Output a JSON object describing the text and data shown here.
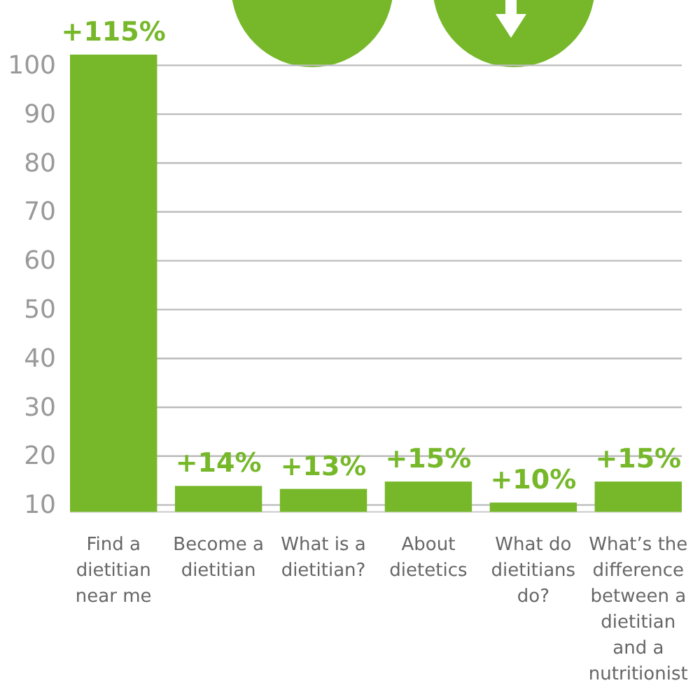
{
  "chart_data": {
    "type": "bar",
    "categories": [
      "Find a dietitian near me",
      "Become a dietitian",
      "What is a dietitian?",
      "About dietetics",
      "What do dietitians do?",
      "What’s the difference between a dietitian and a nutritionist"
    ],
    "values": [
      102.2,
      13.9,
      13.3,
      14.8,
      10.5,
      14.8
    ],
    "annotations": [
      {
        "text": "+115%",
        "x": "Find a dietitian near me",
        "y": 102.2
      },
      {
        "text": "+14%",
        "x": "Become a dietitian",
        "y": 13.9
      },
      {
        "text": "+13%",
        "x": "What is a dietitian?",
        "y": 13.3
      },
      {
        "text": "+15%",
        "x": "About dietetics",
        "y": 14.8
      },
      {
        "text": "+10%",
        "x": "What do dietitians do?",
        "y": 10.5
      },
      {
        "text": "+15%",
        "x": "What’s the difference between a dietitian and a nutritionist",
        "y": 14.8
      }
    ],
    "color": "#76b82a",
    "ylim": [
      8.6,
      102.2
    ],
    "yticks": [
      10,
      20,
      30,
      40,
      50,
      60,
      70,
      80,
      90,
      100
    ],
    "grid": "y"
  }
}
